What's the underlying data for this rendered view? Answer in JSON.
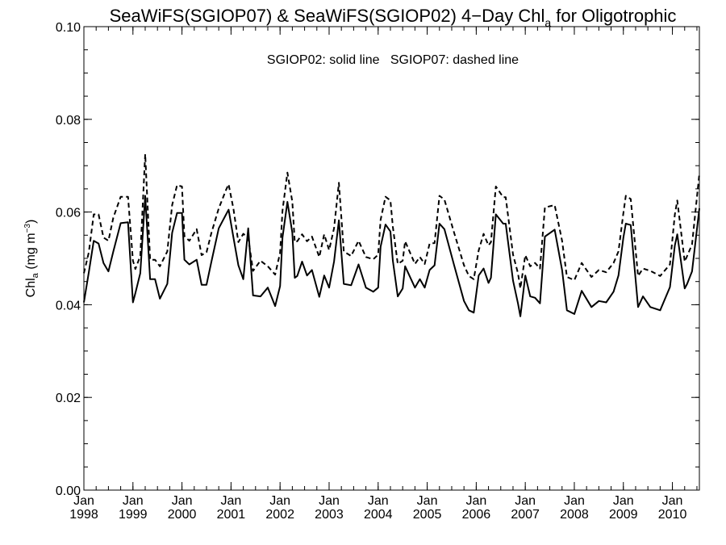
{
  "chart_data": {
    "type": "line",
    "title": {
      "prefix": "SeaWiFS(SGIOP07) & SeaWiFS(SGIOP02) 4−Day Chl",
      "subscript": "a",
      "suffix": " for Oligotrophic"
    },
    "annotation": "SGIOP02: solid line   SGIOP07: dashed line",
    "ylabel": {
      "prefix": "Chl",
      "subscript": "a",
      "unit_open": " (mg m",
      "unit_exp": "−3",
      "unit_close": ")"
    },
    "xlim": [
      1998.0,
      2010.55
    ],
    "ylim": [
      0.0,
      0.1
    ],
    "yticks": [
      "0.00",
      "0.02",
      "0.04",
      "0.06",
      "0.08",
      "0.10"
    ],
    "ytick_values": [
      0.0,
      0.02,
      0.04,
      0.06,
      0.08,
      0.1
    ],
    "xtick_month_label": "Jan",
    "xticks": [
      "1998",
      "1999",
      "2000",
      "2001",
      "2002",
      "2003",
      "2004",
      "2005",
      "2006",
      "2007",
      "2008",
      "2009",
      "2010"
    ],
    "grid": false,
    "series": [
      {
        "name": "SGIOP02",
        "style": "solid",
        "color": "#000000",
        "x": [
          1998.0,
          1998.1,
          1998.2,
          1998.3,
          1998.4,
          1998.5,
          1998.6,
          1998.75,
          1998.9,
          1999.0,
          1999.05,
          1999.15,
          1999.25,
          1999.35,
          1999.45,
          1999.55,
          1999.7,
          1999.8,
          1999.9,
          2000.0,
          2000.05,
          2000.15,
          2000.3,
          2000.4,
          2000.5,
          2000.6,
          2000.75,
          2000.9,
          2000.95,
          2001.05,
          2001.15,
          2001.25,
          2001.35,
          2001.45,
          2001.6,
          2001.75,
          2001.9,
          2002.0,
          2002.05,
          2002.15,
          2002.25,
          2002.3,
          2002.35,
          2002.45,
          2002.55,
          2002.65,
          2002.8,
          2002.9,
          2003.0,
          2003.1,
          2003.2,
          2003.3,
          2003.45,
          2003.6,
          2003.75,
          2003.9,
          2004.0,
          2004.05,
          2004.15,
          2004.25,
          2004.3,
          2004.4,
          2004.5,
          2004.55,
          2004.75,
          2004.85,
          2004.95,
          2005.05,
          2005.15,
          2005.25,
          2005.35,
          2005.55,
          2005.75,
          2005.85,
          2005.95,
          2006.05,
          2006.15,
          2006.25,
          2006.3,
          2006.4,
          2006.55,
          2006.6,
          2006.75,
          2006.85,
          2006.9,
          2007.0,
          2007.1,
          2007.2,
          2007.3,
          2007.4,
          2007.6,
          2007.75,
          2007.85,
          2008.0,
          2008.15,
          2008.35,
          2008.5,
          2008.65,
          2008.8,
          2008.9,
          2009.0,
          2009.05,
          2009.15,
          2009.3,
          2009.4,
          2009.55,
          2009.75,
          2009.95,
          2010.05,
          2010.1,
          2010.25,
          2010.3,
          2010.4,
          2010.55
        ],
        "values": [
          0.0405,
          0.047,
          0.0538,
          0.0532,
          0.049,
          0.0472,
          0.0515,
          0.0576,
          0.0578,
          0.0405,
          0.0425,
          0.0468,
          0.0635,
          0.0455,
          0.0455,
          0.0413,
          0.0445,
          0.0555,
          0.0598,
          0.0598,
          0.0497,
          0.0487,
          0.0497,
          0.0443,
          0.0443,
          0.0493,
          0.0565,
          0.0595,
          0.0605,
          0.0545,
          0.0485,
          0.0455,
          0.0565,
          0.042,
          0.0418,
          0.0437,
          0.0397,
          0.044,
          0.0545,
          0.0622,
          0.0555,
          0.0458,
          0.0462,
          0.0493,
          0.0463,
          0.0475,
          0.0417,
          0.0463,
          0.0437,
          0.0493,
          0.0582,
          0.0445,
          0.0442,
          0.0487,
          0.0437,
          0.0428,
          0.0437,
          0.0525,
          0.0573,
          0.0558,
          0.0495,
          0.0418,
          0.0435,
          0.0483,
          0.0437,
          0.0455,
          0.0437,
          0.0475,
          0.0485,
          0.0575,
          0.0563,
          0.0485,
          0.0408,
          0.0388,
          0.0383,
          0.0463,
          0.0478,
          0.0447,
          0.0458,
          0.0595,
          0.0575,
          0.0575,
          0.0452,
          0.0403,
          0.0375,
          0.0463,
          0.0418,
          0.0415,
          0.0403,
          0.0547,
          0.0562,
          0.0475,
          0.0388,
          0.038,
          0.043,
          0.0395,
          0.0408,
          0.0405,
          0.0428,
          0.0463,
          0.0545,
          0.0575,
          0.0572,
          0.0395,
          0.0418,
          0.0395,
          0.0388,
          0.0438,
          0.0528,
          0.0552,
          0.0435,
          0.0445,
          0.0472,
          0.0608
        ]
      },
      {
        "name": "SGIOP07",
        "style": "dashed",
        "color": "#000000",
        "x": [
          1998.0,
          1998.1,
          1998.2,
          1998.3,
          1998.4,
          1998.5,
          1998.6,
          1998.75,
          1998.9,
          1999.0,
          1999.05,
          1999.15,
          1999.25,
          1999.35,
          1999.45,
          1999.55,
          1999.7,
          1999.8,
          1999.9,
          2000.0,
          2000.05,
          2000.15,
          2000.3,
          2000.4,
          2000.5,
          2000.6,
          2000.75,
          2000.9,
          2000.95,
          2001.05,
          2001.15,
          2001.25,
          2001.35,
          2001.45,
          2001.6,
          2001.75,
          2001.9,
          2002.0,
          2002.05,
          2002.15,
          2002.25,
          2002.3,
          2002.35,
          2002.45,
          2002.55,
          2002.65,
          2002.8,
          2002.9,
          2003.0,
          2003.1,
          2003.2,
          2003.3,
          2003.45,
          2003.6,
          2003.75,
          2003.9,
          2004.0,
          2004.05,
          2004.15,
          2004.25,
          2004.3,
          2004.4,
          2004.5,
          2004.55,
          2004.75,
          2004.85,
          2004.95,
          2005.05,
          2005.15,
          2005.25,
          2005.35,
          2005.55,
          2005.75,
          2005.85,
          2005.95,
          2006.05,
          2006.15,
          2006.25,
          2006.3,
          2006.4,
          2006.55,
          2006.6,
          2006.75,
          2006.85,
          2006.9,
          2007.0,
          2007.1,
          2007.2,
          2007.3,
          2007.4,
          2007.6,
          2007.75,
          2007.85,
          2008.0,
          2008.15,
          2008.35,
          2008.5,
          2008.65,
          2008.8,
          2008.9,
          2009.0,
          2009.05,
          2009.15,
          2009.3,
          2009.4,
          2009.55,
          2009.75,
          2009.95,
          2010.05,
          2010.1,
          2010.25,
          2010.3,
          2010.4,
          2010.55
        ],
        "values": [
          0.0468,
          0.0513,
          0.0595,
          0.0595,
          0.0545,
          0.0538,
          0.0588,
          0.0633,
          0.0633,
          0.0495,
          0.0477,
          0.0505,
          0.0725,
          0.0497,
          0.0497,
          0.0483,
          0.0515,
          0.0615,
          0.0658,
          0.0655,
          0.0548,
          0.0538,
          0.0563,
          0.0507,
          0.0513,
          0.0555,
          0.0608,
          0.0648,
          0.066,
          0.0607,
          0.0535,
          0.0553,
          0.0545,
          0.0473,
          0.0495,
          0.0483,
          0.0465,
          0.0512,
          0.0603,
          0.0685,
          0.0622,
          0.0535,
          0.0537,
          0.0552,
          0.0537,
          0.0547,
          0.0503,
          0.0552,
          0.0518,
          0.0565,
          0.0663,
          0.0515,
          0.0505,
          0.0538,
          0.0503,
          0.0498,
          0.0508,
          0.0583,
          0.0633,
          0.0625,
          0.0568,
          0.0488,
          0.0495,
          0.0537,
          0.0488,
          0.0503,
          0.0488,
          0.0532,
          0.0533,
          0.0635,
          0.0627,
          0.0555,
          0.0485,
          0.0462,
          0.0455,
          0.0517,
          0.0553,
          0.0528,
          0.0535,
          0.0655,
          0.0632,
          0.0632,
          0.0508,
          0.0468,
          0.0435,
          0.0507,
          0.0483,
          0.049,
          0.0478,
          0.061,
          0.0615,
          0.0538,
          0.046,
          0.0453,
          0.049,
          0.046,
          0.0475,
          0.047,
          0.049,
          0.0515,
          0.0598,
          0.0635,
          0.0628,
          0.0462,
          0.0478,
          0.0473,
          0.0462,
          0.0487,
          0.0595,
          0.0625,
          0.0493,
          0.0505,
          0.053,
          0.0683
        ]
      }
    ]
  }
}
